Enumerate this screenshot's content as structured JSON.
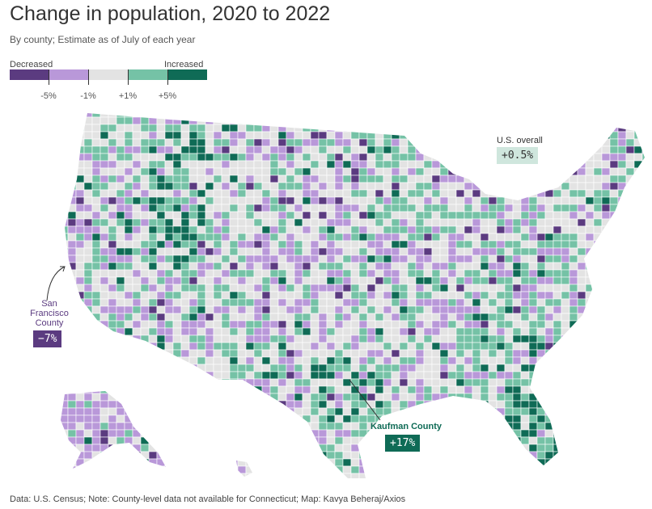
{
  "title": "Change in population, 2020 to 2022",
  "subtitle": "By county; Estimate as of July of each year",
  "legend": {
    "low_label": "Decreased",
    "high_label": "Increased",
    "colors": [
      "#5b3b80",
      "#b998d9",
      "#e3e3e3",
      "#75c2a6",
      "#0f6b56"
    ],
    "ticks": [
      "-5%",
      "-1%",
      "+1%",
      "+5%"
    ]
  },
  "annotations": {
    "us_overall": {
      "label": "U.S. overall",
      "value": "+0.5%",
      "color": "#cfe6dd"
    },
    "sf": {
      "label_lines": [
        "San",
        "Francisco",
        "County"
      ],
      "value": "−7%",
      "color": "#5b3b80"
    },
    "kaufman": {
      "label": "Kaufman County",
      "value": "+17%",
      "color": "#0f6b56"
    }
  },
  "chart_data": {
    "type": "choropleth",
    "geography": "U.S. counties",
    "bins": [
      {
        "range": "< -5%",
        "color": "#5b3b80"
      },
      {
        "range": "-5% to -1%",
        "color": "#b998d9"
      },
      {
        "range": "-1% to +1%",
        "color": "#e3e3e3"
      },
      {
        "range": "+1% to +5%",
        "color": "#75c2a6"
      },
      {
        "range": "> +5%",
        "color": "#0f6b56"
      }
    ]
  },
  "footer": "Data: U.S. Census; Note: County-level data not available for Connecticut; Map: Kavya Beheraj/Axios"
}
